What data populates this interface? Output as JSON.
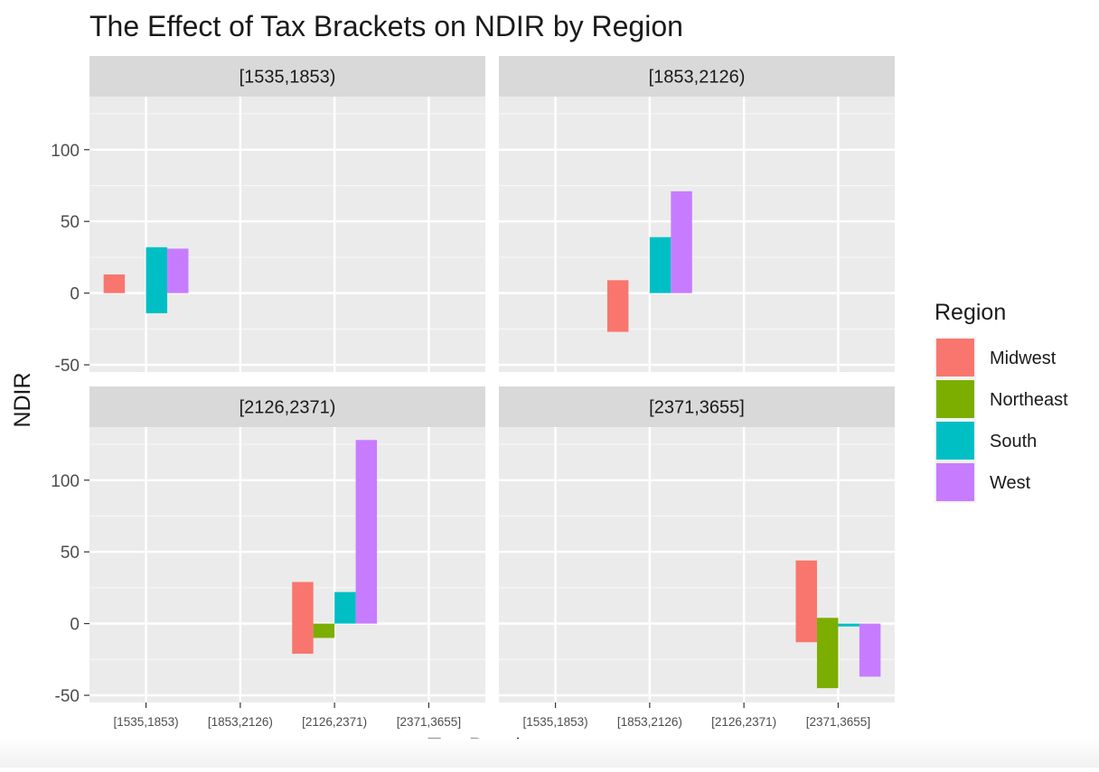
{
  "chart_data": {
    "type": "bar",
    "title": "The Effect of Tax Brackets on NDIR by Region",
    "xlabel": "Tax Brackets",
    "ylabel": "NDIR",
    "ylim": [
      -55,
      137
    ],
    "y_ticks": [
      -50,
      0,
      50,
      100
    ],
    "grid": true,
    "legend": {
      "title": "Region",
      "position": "right",
      "entries": [
        {
          "name": "Midwest",
          "color": "#F8766D"
        },
        {
          "name": "Northeast",
          "color": "#7CAE00"
        },
        {
          "name": "South",
          "color": "#00BFC4"
        },
        {
          "name": "West",
          "color": "#C77CFF"
        }
      ]
    },
    "categories": [
      "[1535,1853)",
      "[1853,2126)",
      "[2126,2371)",
      "[2371,3655]"
    ],
    "facets": [
      {
        "label": "[1535,1853)",
        "bars": [
          {
            "category": "[1535,1853)",
            "region": "Midwest",
            "ymin": 0,
            "ymax": 13
          },
          {
            "category": "[1535,1853)",
            "region": "South",
            "ymin": -14,
            "ymax": 32
          },
          {
            "category": "[1535,1853)",
            "region": "West",
            "ymin": 0,
            "ymax": 31
          }
        ]
      },
      {
        "label": "[1853,2126)",
        "bars": [
          {
            "category": "[1853,2126)",
            "region": "Midwest",
            "ymin": -27,
            "ymax": 9
          },
          {
            "category": "[1853,2126)",
            "region": "South",
            "ymin": 0,
            "ymax": 39
          },
          {
            "category": "[1853,2126)",
            "region": "West",
            "ymin": 0,
            "ymax": 71
          }
        ]
      },
      {
        "label": "[2126,2371)",
        "bars": [
          {
            "category": "[2126,2371)",
            "region": "Midwest",
            "ymin": -21,
            "ymax": 29
          },
          {
            "category": "[2126,2371)",
            "region": "Northeast",
            "ymin": -10,
            "ymax": 0
          },
          {
            "category": "[2126,2371)",
            "region": "South",
            "ymin": 0,
            "ymax": 22
          },
          {
            "category": "[2126,2371)",
            "region": "West",
            "ymin": 0,
            "ymax": 128
          }
        ]
      },
      {
        "label": "[2371,3655]",
        "bars": [
          {
            "category": "[2371,3655]",
            "region": "Midwest",
            "ymin": -13,
            "ymax": 44
          },
          {
            "category": "[2371,3655]",
            "region": "Northeast",
            "ymin": -45,
            "ymax": 4
          },
          {
            "category": "[2371,3655]",
            "region": "South",
            "ymin": -2,
            "ymax": 0
          },
          {
            "category": "[2371,3655]",
            "region": "West",
            "ymin": -37,
            "ymax": 0
          }
        ]
      }
    ]
  }
}
